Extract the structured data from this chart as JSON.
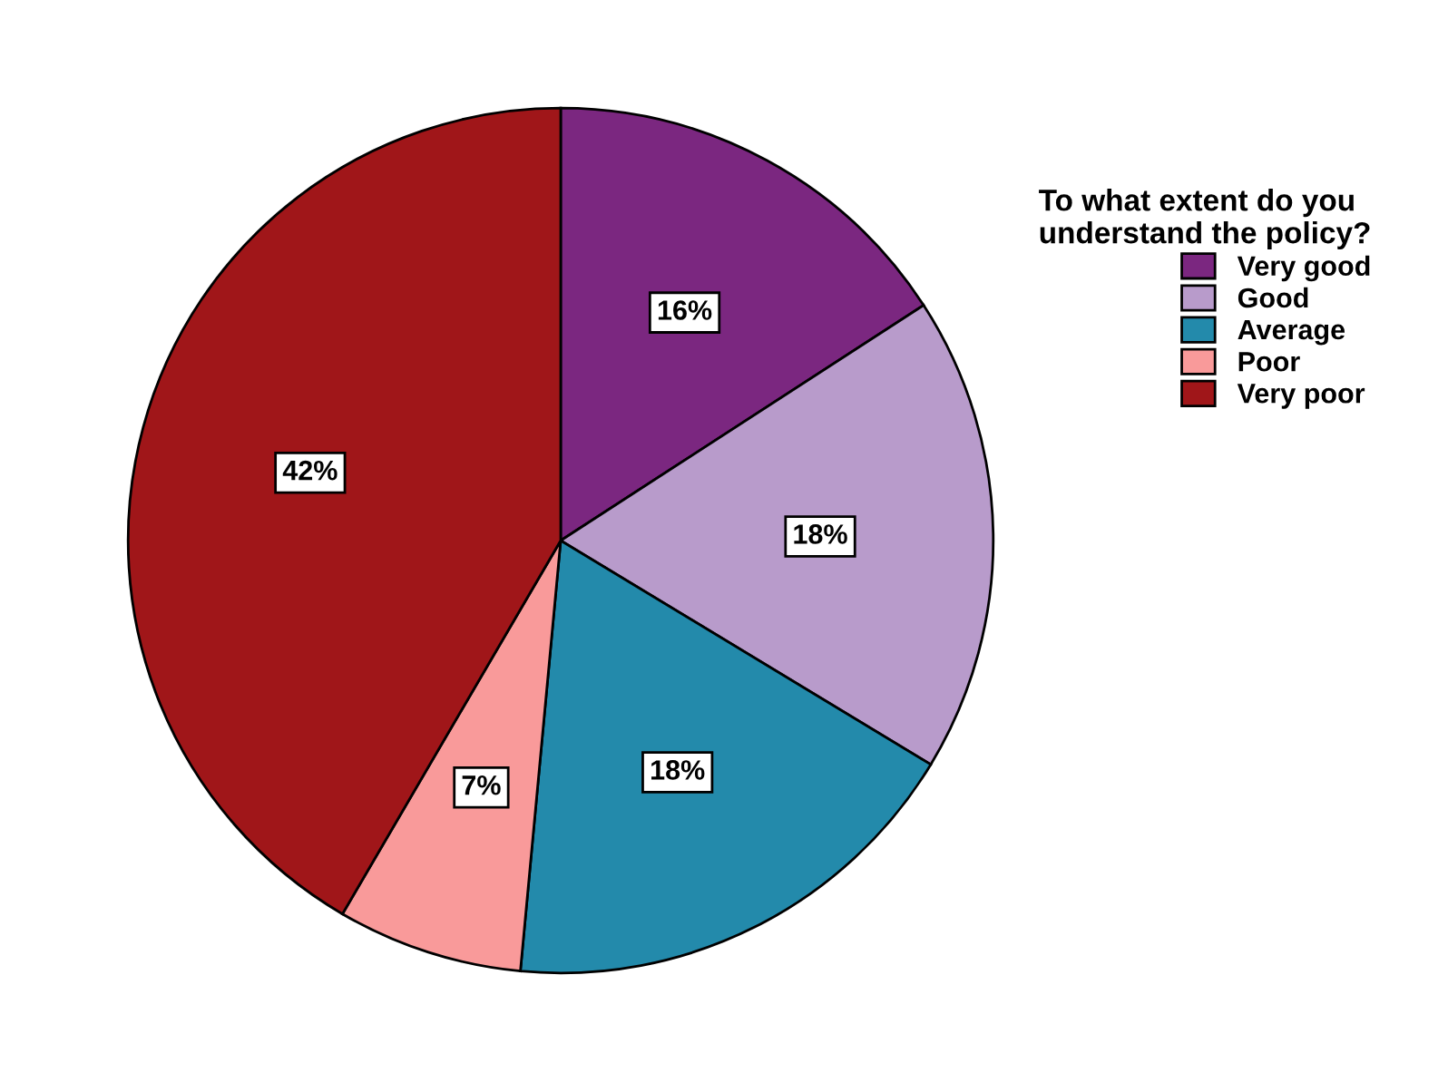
{
  "chart_data": {
    "type": "pie",
    "legend_title": "To what extent do you\nunderstand the policy?",
    "categories": [
      "Very good",
      "Good",
      "Average",
      "Poor",
      "Very poor"
    ],
    "values": [
      16,
      18,
      18,
      7,
      42
    ],
    "colors": [
      "#7b2780",
      "#b89bcb",
      "#238aab",
      "#f99a9a",
      "#a01619"
    ],
    "value_labels": [
      "16%",
      "18%",
      "18%",
      "7%",
      "42%"
    ],
    "legend": "right"
  }
}
